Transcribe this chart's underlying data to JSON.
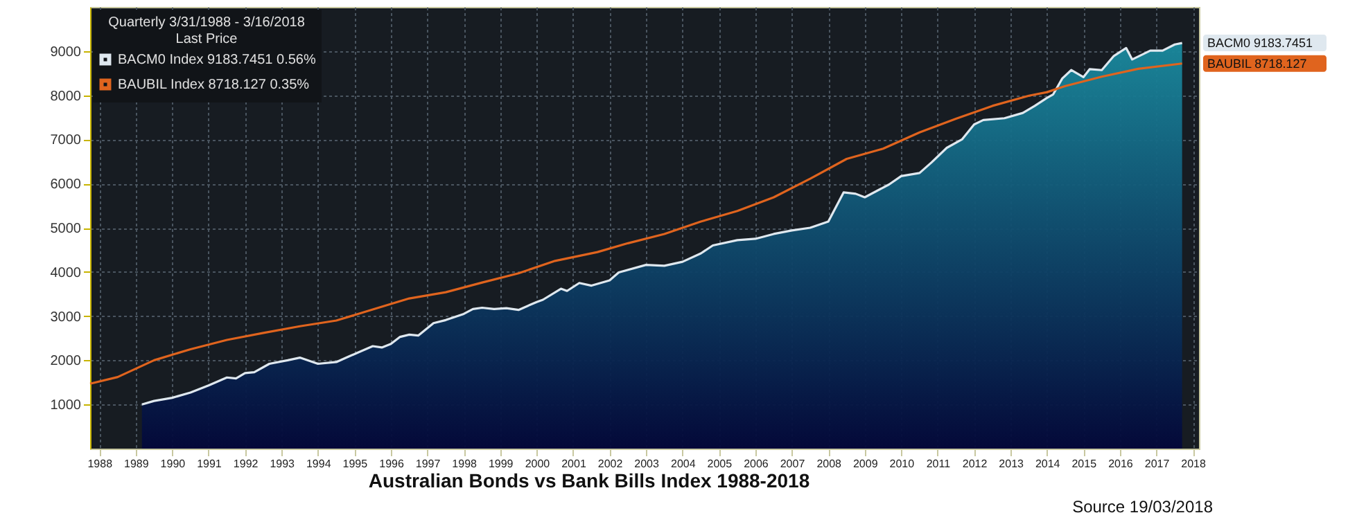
{
  "chart_data": {
    "type": "line",
    "title": "Australian Bonds vs Bank Bills Index 1988-2018",
    "legend_title": "Quarterly 3/31/1988 - 3/16/2018\nLast Price",
    "series": [
      {
        "name": "BACM0 Index 9183.7451 0.56%",
        "type": "area",
        "color": "#dfe8ef",
        "x": [
          "1989-09",
          "1990-01",
          "1990-07",
          "1991-01",
          "1991-07",
          "1992-01",
          "1992-04",
          "1992-07",
          "1992-10",
          "1993-03",
          "1993-09",
          "1994-01",
          "1994-07",
          "1995-01",
          "1995-05",
          "1996-01",
          "1996-04",
          "1996-07",
          "1996-10",
          "1997-01",
          "1997-04",
          "1997-09",
          "1998-01",
          "1998-07",
          "1998-10",
          "1999-01",
          "1999-05",
          "1999-09",
          "2000-01",
          "2000-07",
          "2000-09",
          "2001-03",
          "2001-05",
          "2001-09",
          "2002-01",
          "2002-07",
          "2002-10",
          "2003-07",
          "2004-01",
          "2004-07",
          "2005-01",
          "2005-05",
          "2006-01",
          "2006-07",
          "2007-01",
          "2007-07",
          "2008-01",
          "2008-07",
          "2008-12",
          "2009-04",
          "2009-07",
          "2010-03",
          "2010-07",
          "2011-01",
          "2011-05",
          "2011-10",
          "2012-03",
          "2012-07",
          "2012-10",
          "2013-05",
          "2013-11",
          "2014-03",
          "2014-07",
          "2014-09",
          "2014-12",
          "2015-03",
          "2015-07",
          "2015-09",
          "2016-01",
          "2016-05",
          "2016-09",
          "2016-11",
          "2017-05",
          "2017-09",
          "2018-01",
          "2018-03-16"
        ],
        "values": [
          1000,
          1080,
          1150,
          1270,
          1430,
          1610,
          1590,
          1710,
          1730,
          1920,
          2000,
          2060,
          1920,
          1960,
          2080,
          2320,
          2290,
          2370,
          2530,
          2580,
          2560,
          2840,
          2910,
          3050,
          3160,
          3190,
          3160,
          3180,
          3140,
          3320,
          3370,
          3620,
          3570,
          3750,
          3690,
          3810,
          3990,
          4160,
          4140,
          4230,
          4420,
          4600,
          4720,
          4750,
          4860,
          4940,
          5000,
          5140,
          5800,
          5770,
          5690,
          5980,
          6170,
          6240,
          6480,
          6810,
          7000,
          7340,
          7440,
          7480,
          7600,
          7760,
          7940,
          8020,
          8380,
          8570,
          8410,
          8590,
          8570,
          8890,
          9070,
          8810,
          9010,
          9010,
          9150,
          9183.7451
        ]
      },
      {
        "name": "BAUBIL Index 8718.127 0.35%",
        "color": "#e0641e",
        "x": [
          "1988-03-31",
          "1989-01",
          "1990-01",
          "1991-01",
          "1992-01",
          "1993-01",
          "1994-01",
          "1995-01",
          "1996-01",
          "1997-01",
          "1998-01",
          "1999-01",
          "2000-01",
          "2001-01",
          "2002-03",
          "2003-01",
          "2004-01",
          "2005-01",
          "2006-01",
          "2007-01",
          "2008-01",
          "2009-01",
          "2010-01",
          "2011-01",
          "2012-01",
          "2013-01",
          "2014-01",
          "2014-07",
          "2015-01",
          "2016-01",
          "2017-01",
          "2018-03-16"
        ],
        "values": [
          1470,
          1620,
          2000,
          2250,
          2460,
          2620,
          2770,
          2900,
          3150,
          3400,
          3540,
          3760,
          3970,
          4250,
          4450,
          4650,
          4860,
          5140,
          5380,
          5690,
          6110,
          6560,
          6790,
          7160,
          7470,
          7760,
          7990,
          8070,
          8210,
          8420,
          8600,
          8718.127
        ]
      }
    ],
    "xlim": [
      "1988-03-31",
      "2018-09-01"
    ],
    "xticks": [
      {
        "value": "1988-07-01",
        "label": "1988"
      },
      {
        "value": "1989-07-01",
        "label": "1989"
      },
      {
        "value": "1990-07-01",
        "label": "1990"
      },
      {
        "value": "1991-07-01",
        "label": "1991"
      },
      {
        "value": "1992-07-01",
        "label": "1992"
      },
      {
        "value": "1993-07-01",
        "label": "1993"
      },
      {
        "value": "1994-07-01",
        "label": "1994"
      },
      {
        "value": "1995-07-01",
        "label": "1995"
      },
      {
        "value": "1996-07-01",
        "label": "1996"
      },
      {
        "value": "1997-07-01",
        "label": "1997"
      },
      {
        "value": "1998-07-01",
        "label": "1998"
      },
      {
        "value": "1999-07-01",
        "label": "1999"
      },
      {
        "value": "2000-07-01",
        "label": "2000"
      },
      {
        "value": "2001-07-01",
        "label": "2001"
      },
      {
        "value": "2002-07-01",
        "label": "2002"
      },
      {
        "value": "2003-07-01",
        "label": "2003"
      },
      {
        "value": "2004-07-01",
        "label": "2004"
      },
      {
        "value": "2005-07-01",
        "label": "2005"
      },
      {
        "value": "2006-07-01",
        "label": "2006"
      },
      {
        "value": "2007-07-01",
        "label": "2007"
      },
      {
        "value": "2008-07-01",
        "label": "2008"
      },
      {
        "value": "2009-07-01",
        "label": "2009"
      },
      {
        "value": "2010-07-01",
        "label": "2010"
      },
      {
        "value": "2011-07-01",
        "label": "2011"
      },
      {
        "value": "2012-07-01",
        "label": "2012"
      },
      {
        "value": "2013-07-01",
        "label": "2013"
      },
      {
        "value": "2014-07-01",
        "label": "2014"
      },
      {
        "value": "2015-07-01",
        "label": "2015"
      },
      {
        "value": "2016-07-01",
        "label": "2016"
      },
      {
        "value": "2017-07-01",
        "label": "2017"
      },
      {
        "value": "2018-07-01",
        "label": "2018"
      }
    ],
    "ylim": [
      0,
      10000
    ],
    "yticks": [
      1000,
      2000,
      3000,
      4000,
      5000,
      6000,
      7000,
      8000,
      9000
    ],
    "grid": true,
    "legend": "top left",
    "annotations": [
      "BACM0 9183.7451",
      "BAUBIL 8718.127",
      "Source 19/03/2018"
    ]
  }
}
